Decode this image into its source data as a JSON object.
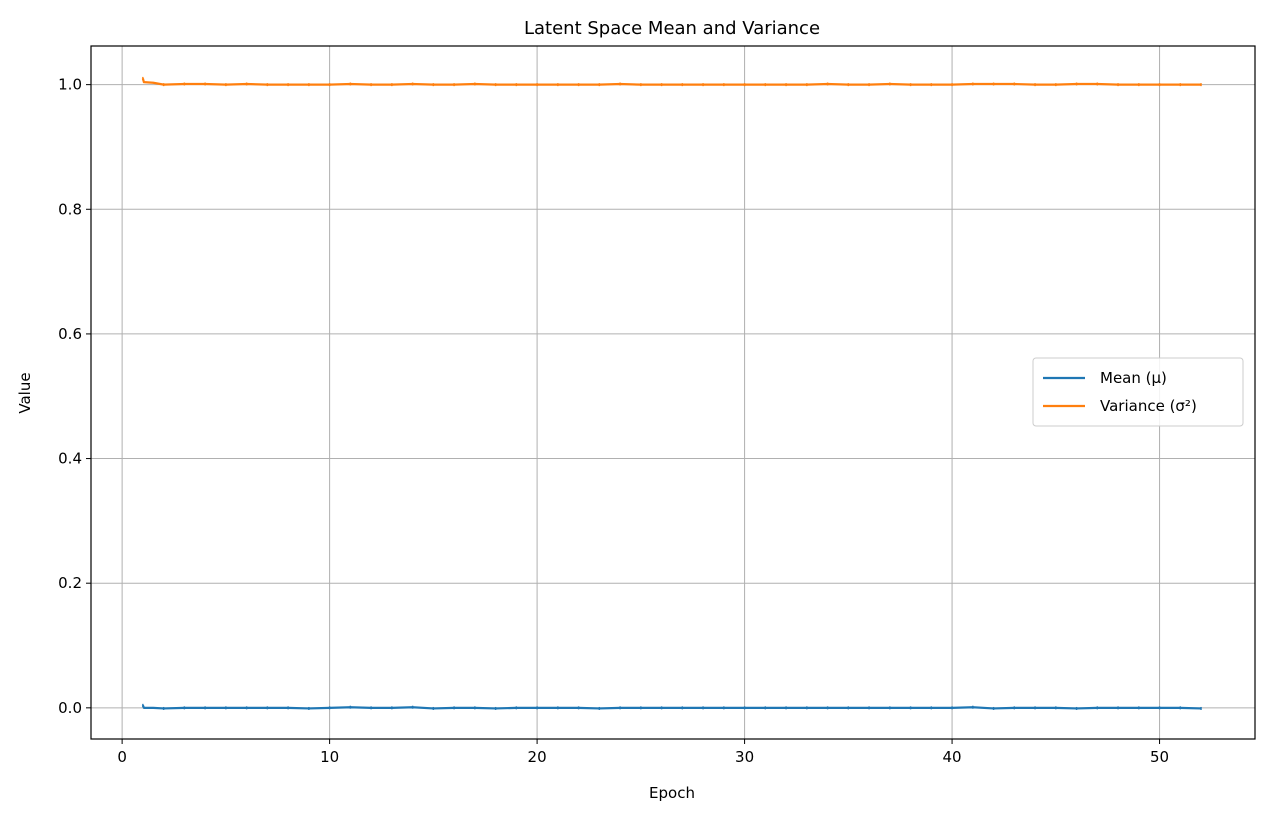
{
  "chart_data": {
    "type": "line",
    "title": "Latent Space Mean and Variance",
    "xlabel": "Epoch",
    "ylabel": "Value",
    "xlim": [
      -1.5,
      54.6
    ],
    "ylim": [
      -0.05,
      1.062
    ],
    "xticks": [
      0,
      10,
      20,
      30,
      40,
      50
    ],
    "yticks": [
      0.0,
      0.2,
      0.4,
      0.6,
      0.8,
      1.0
    ],
    "xtick_labels": [
      "0",
      "10",
      "20",
      "30",
      "40",
      "50"
    ],
    "ytick_labels": [
      "0.0",
      "0.2",
      "0.4",
      "0.6",
      "0.8",
      "1.0"
    ],
    "grid": true,
    "legend_position": "center-right",
    "series": [
      {
        "name": "Mean (μ)",
        "color": "#1f77b4",
        "x": [
          1,
          1.05,
          1.5,
          2,
          3,
          4,
          5,
          6,
          7,
          8,
          9,
          10,
          11,
          12,
          13,
          14,
          15,
          16,
          17,
          18,
          19,
          20,
          21,
          22,
          23,
          24,
          25,
          26,
          27,
          28,
          29,
          30,
          31,
          32,
          33,
          34,
          35,
          36,
          37,
          38,
          39,
          40,
          41,
          42,
          43,
          44,
          45,
          46,
          47,
          48,
          49,
          50,
          51,
          52
        ],
        "values": [
          0.004,
          0.0,
          0.0,
          -0.001,
          0.0,
          0.0,
          0.0,
          0.0,
          0.0,
          0.0,
          -0.001,
          0.0,
          0.001,
          0.0,
          0.0,
          0.001,
          -0.001,
          0.0,
          0.0,
          -0.001,
          0.0,
          0.0,
          0.0,
          0.0,
          -0.001,
          0.0,
          0.0,
          0.0,
          0.0,
          0.0,
          0.0,
          0.0,
          0.0,
          0.0,
          0.0,
          0.0,
          0.0,
          0.0,
          0.0,
          0.0,
          0.0,
          0.0,
          0.001,
          -0.001,
          0.0,
          0.0,
          0.0,
          -0.001,
          0.0,
          0.0,
          0.0,
          0.0,
          0.0,
          -0.001
        ]
      },
      {
        "name": "Variance (σ²)",
        "color": "#ff7f0e",
        "x": [
          1,
          1.05,
          1.5,
          2,
          3,
          4,
          5,
          6,
          7,
          8,
          9,
          10,
          11,
          12,
          13,
          14,
          15,
          16,
          17,
          18,
          19,
          20,
          21,
          22,
          23,
          24,
          25,
          26,
          27,
          28,
          29,
          30,
          31,
          32,
          33,
          34,
          35,
          36,
          37,
          38,
          39,
          40,
          41,
          42,
          43,
          44,
          45,
          46,
          47,
          48,
          49,
          50,
          51,
          52
        ],
        "values": [
          1.01,
          1.004,
          1.003,
          1.0,
          1.001,
          1.001,
          1.0,
          1.001,
          1.0,
          1.0,
          1.0,
          1.0,
          1.001,
          1.0,
          1.0,
          1.001,
          1.0,
          1.0,
          1.001,
          1.0,
          1.0,
          1.0,
          1.0,
          1.0,
          1.0,
          1.001,
          1.0,
          1.0,
          1.0,
          1.0,
          1.0,
          1.0,
          1.0,
          1.0,
          1.0,
          1.001,
          1.0,
          1.0,
          1.001,
          1.0,
          1.0,
          1.0,
          1.001,
          1.001,
          1.001,
          1.0,
          1.0,
          1.001,
          1.001,
          1.0,
          1.0,
          1.0,
          1.0,
          1.0
        ]
      }
    ]
  }
}
